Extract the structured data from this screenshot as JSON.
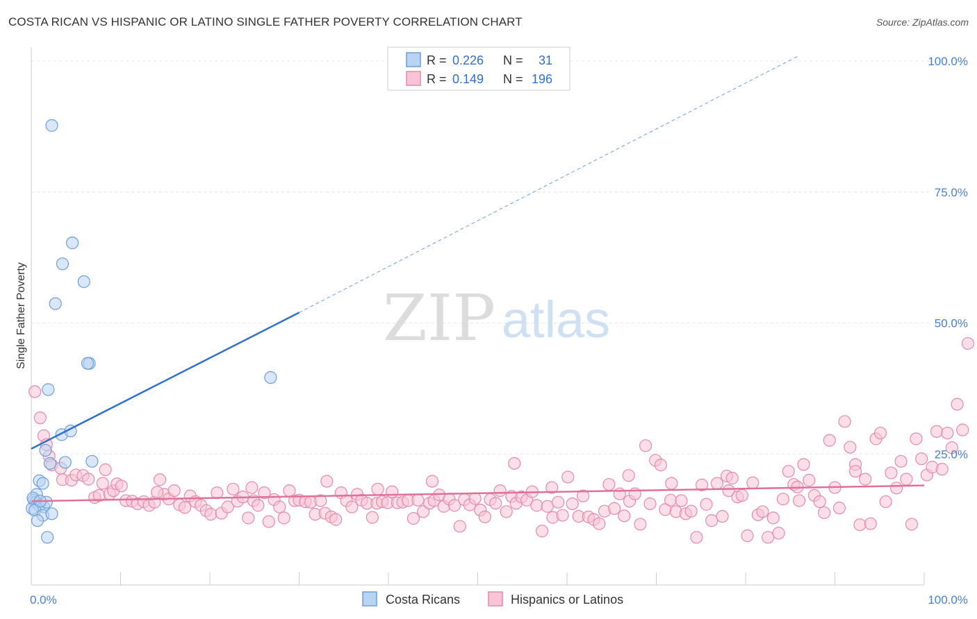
{
  "header": {
    "title": "COSTA RICAN VS HISPANIC OR LATINO SINGLE FATHER POVERTY CORRELATION CHART",
    "source": "Source: ZipAtlas.com"
  },
  "watermark": {
    "zip": "ZIP",
    "atlas": "atlas"
  },
  "colors": {
    "blue": "#6a9fd8",
    "blue_fill": "#b9d3f3",
    "blue_line": "#2f6fd0",
    "pink": "#e58aa9",
    "pink_fill": "#f8c4d5",
    "pink_line": "#e0709a",
    "axis_label": "#4a7fd0"
  },
  "chart_data": {
    "type": "scatter",
    "ylabel": "Single Father Poverty",
    "xlim": [
      0,
      100
    ],
    "ylim": [
      0,
      100
    ],
    "x_tick_labels": [
      "0.0%",
      "100.0%"
    ],
    "y_tick_labels": [
      "25.0%",
      "50.0%",
      "75.0%",
      "100.0%"
    ],
    "y_ticks": [
      25,
      50,
      75,
      100
    ],
    "grid": true,
    "legend": {
      "placement": "top-center",
      "entries": [
        {
          "r_label": "R =",
          "r_value": "0.226",
          "n_label": "N =",
          "n_value": "31"
        },
        {
          "r_label": "R =",
          "r_value": "0.149",
          "n_label": "N =",
          "n_value": "196"
        }
      ]
    },
    "bottom_legend": [
      "Costa Ricans",
      "Hispanics or Latinos"
    ],
    "series": [
      {
        "name": "Costa Ricans",
        "color": "#6a9fd8",
        "trend": {
          "x0": 0,
          "y0": 26.0,
          "x1": 30,
          "y1": 52.0,
          "dash_to_x": 86,
          "dash_to_y": 100
        },
        "points": [
          [
            2.3,
            87.7
          ],
          [
            4.6,
            65.3
          ],
          [
            3.5,
            61.3
          ],
          [
            5.9,
            57.9
          ],
          [
            2.7,
            53.7
          ],
          [
            6.5,
            42.3
          ],
          [
            6.3,
            42.3
          ],
          [
            1.9,
            37.3
          ],
          [
            26.8,
            39.6
          ],
          [
            3.4,
            28.7
          ],
          [
            4.4,
            29.4
          ],
          [
            3.8,
            23.4
          ],
          [
            1.6,
            25.7
          ],
          [
            2.1,
            23.2
          ],
          [
            6.8,
            23.6
          ],
          [
            0.9,
            19.9
          ],
          [
            1.3,
            19.4
          ],
          [
            0.6,
            17.3
          ],
          [
            0.3,
            16.2
          ],
          [
            0.5,
            15.8
          ],
          [
            0.9,
            15.1
          ],
          [
            1.4,
            14.9
          ],
          [
            1.7,
            15.8
          ],
          [
            0.1,
            14.6
          ],
          [
            0.4,
            14.3
          ],
          [
            1.3,
            13.3
          ],
          [
            2.3,
            13.6
          ],
          [
            0.7,
            12.3
          ],
          [
            1.8,
            9.1
          ],
          [
            0.2,
            16.6
          ],
          [
            1.0,
            16.0
          ]
        ]
      },
      {
        "name": "Hispanics or Latinos",
        "color": "#e58aa9",
        "trend": {
          "x0": 0,
          "y0": 16.0,
          "x1": 100,
          "y1": 19.0
        },
        "points": [
          [
            0.4,
            36.9
          ],
          [
            1.0,
            31.9
          ],
          [
            1.4,
            28.5
          ],
          [
            1.7,
            26.8
          ],
          [
            2.0,
            24.6
          ],
          [
            2.3,
            22.9
          ],
          [
            3.3,
            22.3
          ],
          [
            3.5,
            20.1
          ],
          [
            4.5,
            20.0
          ],
          [
            5.0,
            21.0
          ],
          [
            5.8,
            20.9
          ],
          [
            6.4,
            20.2
          ],
          [
            7.1,
            16.7
          ],
          [
            7.6,
            17.1
          ],
          [
            8.0,
            19.4
          ],
          [
            8.8,
            17.4
          ],
          [
            9.2,
            18.0
          ],
          [
            9.6,
            19.3
          ],
          [
            10.1,
            18.9
          ],
          [
            10.6,
            16.1
          ],
          [
            11.3,
            16.0
          ],
          [
            11.9,
            15.5
          ],
          [
            12.6,
            15.9
          ],
          [
            13.2,
            15.2
          ],
          [
            13.8,
            15.8
          ],
          [
            14.4,
            20.1
          ],
          [
            14.9,
            17.3
          ],
          [
            15.4,
            16.4
          ],
          [
            16.0,
            18.0
          ],
          [
            16.6,
            15.3
          ],
          [
            17.2,
            14.8
          ],
          [
            17.8,
            17.0
          ],
          [
            18.4,
            15.9
          ],
          [
            19.0,
            15.2
          ],
          [
            19.6,
            14.2
          ],
          [
            20.1,
            13.5
          ],
          [
            20.8,
            17.6
          ],
          [
            21.3,
            13.7
          ],
          [
            22.0,
            14.9
          ],
          [
            22.6,
            18.3
          ],
          [
            23.1,
            16.0
          ],
          [
            23.7,
            16.8
          ],
          [
            24.3,
            12.8
          ],
          [
            24.9,
            16.1
          ],
          [
            25.4,
            15.2
          ],
          [
            26.1,
            17.6
          ],
          [
            26.6,
            12.1
          ],
          [
            27.2,
            16.3
          ],
          [
            27.8,
            14.9
          ],
          [
            28.3,
            12.8
          ],
          [
            28.9,
            18.0
          ],
          [
            29.5,
            16.1
          ],
          [
            30.0,
            16.2
          ],
          [
            30.7,
            15.9
          ],
          [
            31.3,
            15.8
          ],
          [
            31.8,
            13.5
          ],
          [
            32.4,
            16.1
          ],
          [
            32.9,
            13.7
          ],
          [
            33.6,
            13.0
          ],
          [
            34.1,
            12.5
          ],
          [
            34.7,
            17.6
          ],
          [
            35.3,
            16.1
          ],
          [
            35.9,
            14.9
          ],
          [
            36.5,
            17.3
          ],
          [
            37.0,
            16.2
          ],
          [
            37.6,
            15.6
          ],
          [
            38.2,
            12.9
          ],
          [
            38.7,
            15.6
          ],
          [
            39.3,
            15.9
          ],
          [
            39.9,
            15.7
          ],
          [
            40.4,
            17.8
          ],
          [
            41.0,
            15.7
          ],
          [
            41.6,
            15.8
          ],
          [
            42.2,
            16.1
          ],
          [
            42.8,
            12.7
          ],
          [
            43.3,
            16.2
          ],
          [
            43.9,
            14.0
          ],
          [
            44.6,
            15.6
          ],
          [
            45.1,
            16.1
          ],
          [
            45.7,
            17.2
          ],
          [
            46.2,
            15.0
          ],
          [
            46.8,
            16.4
          ],
          [
            47.4,
            15.2
          ],
          [
            48.0,
            11.2
          ],
          [
            48.5,
            16.3
          ],
          [
            49.1,
            15.3
          ],
          [
            49.7,
            16.5
          ],
          [
            50.3,
            14.3
          ],
          [
            50.8,
            13.0
          ],
          [
            51.4,
            16.3
          ],
          [
            52.0,
            15.6
          ],
          [
            52.5,
            18.0
          ],
          [
            53.2,
            14.0
          ],
          [
            53.8,
            16.9
          ],
          [
            54.3,
            15.6
          ],
          [
            54.9,
            16.8
          ],
          [
            55.5,
            16.2
          ],
          [
            56.1,
            17.8
          ],
          [
            56.6,
            15.2
          ],
          [
            57.2,
            10.3
          ],
          [
            57.8,
            15.0
          ],
          [
            58.4,
            12.9
          ],
          [
            59.0,
            15.8
          ],
          [
            59.5,
            13.3
          ],
          [
            60.1,
            20.6
          ],
          [
            60.6,
            15.5
          ],
          [
            61.3,
            13.1
          ],
          [
            61.8,
            17.0
          ],
          [
            62.4,
            13.0
          ],
          [
            63.0,
            12.5
          ],
          [
            63.6,
            11.7
          ],
          [
            64.2,
            14.1
          ],
          [
            64.7,
            19.2
          ],
          [
            65.3,
            14.6
          ],
          [
            65.9,
            17.4
          ],
          [
            66.4,
            13.2
          ],
          [
            67.0,
            16.0
          ],
          [
            67.6,
            17.4
          ],
          [
            68.2,
            11.6
          ],
          [
            68.8,
            26.6
          ],
          [
            69.3,
            15.5
          ],
          [
            69.9,
            23.8
          ],
          [
            70.5,
            22.9
          ],
          [
            71.0,
            14.4
          ],
          [
            71.6,
            16.2
          ],
          [
            72.2,
            14.0
          ],
          [
            72.8,
            16.1
          ],
          [
            73.3,
            13.6
          ],
          [
            73.9,
            14.1
          ],
          [
            74.5,
            9.1
          ],
          [
            75.1,
            19.1
          ],
          [
            75.6,
            15.4
          ],
          [
            76.2,
            12.3
          ],
          [
            76.8,
            19.4
          ],
          [
            77.4,
            13.1
          ],
          [
            77.9,
            20.8
          ],
          [
            78.5,
            20.4
          ],
          [
            79.1,
            16.8
          ],
          [
            79.6,
            17.1
          ],
          [
            80.2,
            9.4
          ],
          [
            80.8,
            19.5
          ],
          [
            81.4,
            13.4
          ],
          [
            81.9,
            14.0
          ],
          [
            82.5,
            9.1
          ],
          [
            83.1,
            12.8
          ],
          [
            83.7,
            9.9
          ],
          [
            84.2,
            16.4
          ],
          [
            84.8,
            21.7
          ],
          [
            85.4,
            19.2
          ],
          [
            86.0,
            16.1
          ],
          [
            86.5,
            23.0
          ],
          [
            87.1,
            20.0
          ],
          [
            87.7,
            17.1
          ],
          [
            88.3,
            15.9
          ],
          [
            88.8,
            13.8
          ],
          [
            89.4,
            27.6
          ],
          [
            90.0,
            18.6
          ],
          [
            90.5,
            14.7
          ],
          [
            91.1,
            31.2
          ],
          [
            91.7,
            26.3
          ],
          [
            92.3,
            23.0
          ],
          [
            92.8,
            11.5
          ],
          [
            93.4,
            20.2
          ],
          [
            94.0,
            11.7
          ],
          [
            94.6,
            27.9
          ],
          [
            95.1,
            29.0
          ],
          [
            95.7,
            15.9
          ],
          [
            96.3,
            21.4
          ],
          [
            96.9,
            18.5
          ],
          [
            97.4,
            23.6
          ],
          [
            98.0,
            20.2
          ],
          [
            98.6,
            11.6
          ],
          [
            99.1,
            27.9
          ],
          [
            99.7,
            24.1
          ],
          [
            100.3,
            21.0
          ],
          [
            100.9,
            22.5
          ],
          [
            101.4,
            29.3
          ],
          [
            102.0,
            22.1
          ],
          [
            102.6,
            29.0
          ],
          [
            103.1,
            26.2
          ],
          [
            103.7,
            34.5
          ],
          [
            104.3,
            29.6
          ],
          [
            104.9,
            46.1
          ],
          [
            92.3,
            21.7
          ],
          [
            85.8,
            18.7
          ],
          [
            78.1,
            18.0
          ],
          [
            71.7,
            19.4
          ],
          [
            66.9,
            20.9
          ],
          [
            58.3,
            18.6
          ],
          [
            54.1,
            23.2
          ],
          [
            44.9,
            19.8
          ],
          [
            38.8,
            18.3
          ],
          [
            33.1,
            19.8
          ],
          [
            24.7,
            18.6
          ],
          [
            14.1,
            17.7
          ],
          [
            8.3,
            22.0
          ]
        ]
      }
    ]
  }
}
